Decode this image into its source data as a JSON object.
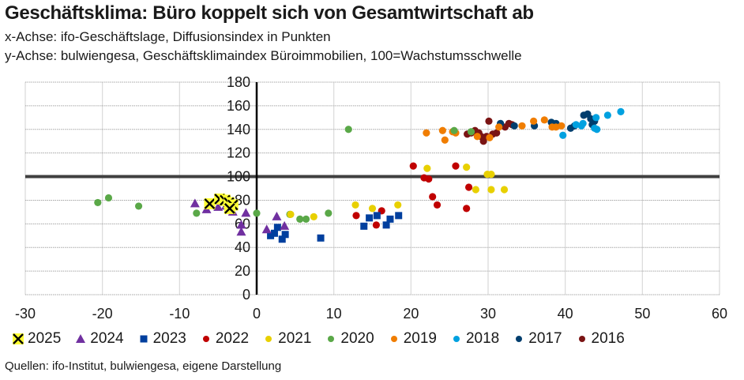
{
  "title": "Geschäftsklima: Büro koppelt sich von Gesamtwirtschaft ab",
  "subtitle_x": "x-Achse: ifo-Geschäftslage, Diffusionsindex in Punkten",
  "subtitle_y": "y-Achse: bulwiengesa, Geschäftsklimaindex Büroimmobilien, 100=Wachstumsschwelle",
  "source": "Quellen: ifo-Institut, bulwiengesa, eigene Darstellung",
  "chart_data": {
    "type": "scatter",
    "title": "Geschäftsklima: Büro koppelt sich von Gesamtwirtschaft ab",
    "xlabel": "ifo-Geschäftslage, Diffusionsindex in Punkten",
    "ylabel": "bulwiengesa, Geschäftsklimaindex Büroimmobilien, 100=Wachstumsschwelle",
    "xlim": [
      -30,
      60
    ],
    "ylim": [
      0,
      180
    ],
    "xticks": [
      "-30",
      "-20",
      "-10",
      "0",
      "10",
      "20",
      "30",
      "40",
      "50",
      "60"
    ],
    "yticks": [
      "0",
      "20",
      "40",
      "60",
      "80",
      "100",
      "120",
      "140",
      "160",
      "180"
    ],
    "reference_line_y": 100,
    "grid": true,
    "legend_position": "bottom",
    "series": [
      {
        "name": "2025",
        "marker": "x",
        "color": "#ffff33",
        "points": [
          [
            -6.1,
            77
          ],
          [
            -4.8,
            81
          ],
          [
            -4.1,
            80
          ],
          [
            -3.6,
            78
          ],
          [
            -3.1,
            76
          ],
          [
            -3.5,
            73
          ]
        ]
      },
      {
        "name": "2024",
        "marker": "triangle",
        "color": "#7030a0",
        "points": [
          [
            -8,
            77
          ],
          [
            -6.5,
            72
          ],
          [
            -5,
            74
          ],
          [
            -4,
            75
          ],
          [
            -3.1,
            70
          ],
          [
            -1.4,
            69
          ],
          [
            -2,
            59
          ],
          [
            -2,
            53
          ],
          [
            2.6,
            66
          ],
          [
            1.3,
            55
          ],
          [
            3.6,
            58
          ]
        ]
      },
      {
        "name": "2023",
        "marker": "square",
        "color": "#003f9e",
        "points": [
          [
            1.8,
            50
          ],
          [
            2.3,
            52
          ],
          [
            2.7,
            57
          ],
          [
            3.3,
            47
          ],
          [
            3.7,
            51
          ],
          [
            8.3,
            48
          ],
          [
            13.9,
            58
          ],
          [
            14.6,
            65
          ],
          [
            15.6,
            67
          ],
          [
            16.8,
            59
          ],
          [
            17.3,
            64
          ],
          [
            18.4,
            67
          ]
        ]
      },
      {
        "name": "2022",
        "marker": "circle",
        "color": "#c00000",
        "points": [
          [
            12.9,
            67
          ],
          [
            15.5,
            59
          ],
          [
            16.2,
            71
          ],
          [
            20.3,
            109
          ],
          [
            21.7,
            99
          ],
          [
            22.3,
            98
          ],
          [
            22.8,
            83
          ],
          [
            23.4,
            76
          ],
          [
            25.8,
            109
          ],
          [
            27.5,
            91
          ],
          [
            27.2,
            73
          ]
        ]
      },
      {
        "name": "2021",
        "marker": "circle",
        "color": "#e8d000",
        "points": [
          [
            4.4,
            68
          ],
          [
            7.4,
            66
          ],
          [
            12.8,
            76
          ],
          [
            15,
            73
          ],
          [
            18.3,
            76
          ],
          [
            22.1,
            107
          ],
          [
            27.2,
            108
          ],
          [
            28.4,
            89
          ],
          [
            29.9,
            102
          ],
          [
            30.4,
            102
          ],
          [
            30.4,
            89
          ],
          [
            32.1,
            89
          ]
        ]
      },
      {
        "name": "2020",
        "marker": "circle",
        "color": "#5aa848",
        "points": [
          [
            -20.6,
            78
          ],
          [
            -19.2,
            82
          ],
          [
            -15.3,
            75
          ],
          [
            -7.8,
            69
          ],
          [
            0,
            69
          ],
          [
            4.3,
            68
          ],
          [
            5.6,
            64
          ],
          [
            6.4,
            64
          ],
          [
            9.3,
            69
          ],
          [
            11.9,
            140
          ],
          [
            25.6,
            139
          ],
          [
            27.8,
            138
          ]
        ]
      },
      {
        "name": "2019",
        "marker": "circle",
        "color": "#f07d00",
        "points": [
          [
            22,
            137
          ],
          [
            24.1,
            139
          ],
          [
            24.4,
            131
          ],
          [
            25.4,
            138
          ],
          [
            25.8,
            137
          ],
          [
            28.6,
            134
          ],
          [
            30.2,
            133
          ],
          [
            31.4,
            142
          ],
          [
            34.4,
            143
          ],
          [
            35.9,
            147
          ],
          [
            37.3,
            148
          ],
          [
            38.3,
            142
          ],
          [
            38.8,
            142
          ],
          [
            39.5,
            143
          ]
        ]
      },
      {
        "name": "2018",
        "marker": "circle",
        "color": "#00a1e0",
        "points": [
          [
            39.7,
            135
          ],
          [
            41.4,
            144
          ],
          [
            42.1,
            143
          ],
          [
            42.3,
            145
          ],
          [
            43.8,
            141
          ],
          [
            44,
            150
          ],
          [
            44.1,
            140
          ],
          [
            45.5,
            152
          ],
          [
            47.2,
            155
          ]
        ]
      },
      {
        "name": "2017",
        "marker": "circle",
        "color": "#003e6e",
        "points": [
          [
            31.6,
            145
          ],
          [
            33.4,
            143
          ],
          [
            36,
            143
          ],
          [
            38.2,
            146
          ],
          [
            38.8,
            145
          ],
          [
            40.7,
            141
          ],
          [
            41.2,
            143
          ],
          [
            42.4,
            152
          ],
          [
            42.9,
            153
          ],
          [
            43.3,
            149
          ],
          [
            43.8,
            147
          ],
          [
            43.5,
            144
          ]
        ]
      },
      {
        "name": "2016",
        "marker": "circle",
        "color": "#7a1414",
        "points": [
          [
            27.3,
            136
          ],
          [
            27.8,
            137
          ],
          [
            28.3,
            139
          ],
          [
            28.8,
            137
          ],
          [
            29.1,
            134
          ],
          [
            29.4,
            130
          ],
          [
            29.8,
            134
          ],
          [
            30.1,
            147
          ],
          [
            30.6,
            136
          ],
          [
            31.1,
            137
          ],
          [
            32.2,
            142
          ],
          [
            32.7,
            145
          ],
          [
            33.1,
            144
          ]
        ]
      }
    ]
  }
}
